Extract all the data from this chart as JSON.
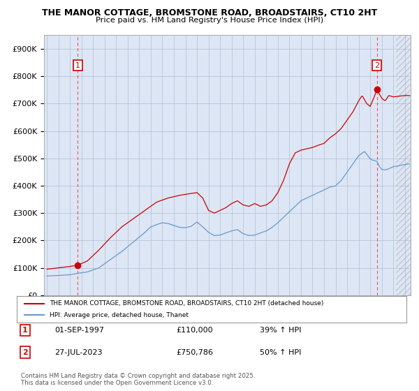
{
  "title": "THE MANOR COTTAGE, BROMSTONE ROAD, BROADSTAIRS, CT10 2HT",
  "subtitle": "Price paid vs. HM Land Registry's House Price Index (HPI)",
  "legend_line1": "THE MANOR COTTAGE, BROMSTONE ROAD, BROADSTAIRS, CT10 2HT (detached house)",
  "legend_line2": "HPI: Average price, detached house, Thanet",
  "transaction1_label": "1",
  "transaction1_date": "01-SEP-1997",
  "transaction1_price": "£110,000",
  "transaction1_hpi": "39% ↑ HPI",
  "transaction2_label": "2",
  "transaction2_date": "27-JUL-2023",
  "transaction2_price": "£750,786",
  "transaction2_hpi": "50% ↑ HPI",
  "footer": "Contains HM Land Registry data © Crown copyright and database right 2025.\nThis data is licensed under the Open Government Licence v3.0.",
  "red_color": "#cc0000",
  "blue_color": "#6699cc",
  "dashed_color": "#ee4444",
  "background_color": "#e8eef8",
  "plot_bg_color": "#dde6f5",
  "grid_color": "#b0bed0",
  "ylim": [
    0,
    950000
  ],
  "yticks": [
    0,
    100000,
    200000,
    300000,
    400000,
    500000,
    600000,
    700000,
    800000,
    900000
  ],
  "xlim_start": 1994.75,
  "xlim_end": 2026.5,
  "transaction1_x": 1997.67,
  "transaction1_y": 110000,
  "transaction2_x": 2023.58,
  "transaction2_y": 750786,
  "hatch_start": 2025.25
}
